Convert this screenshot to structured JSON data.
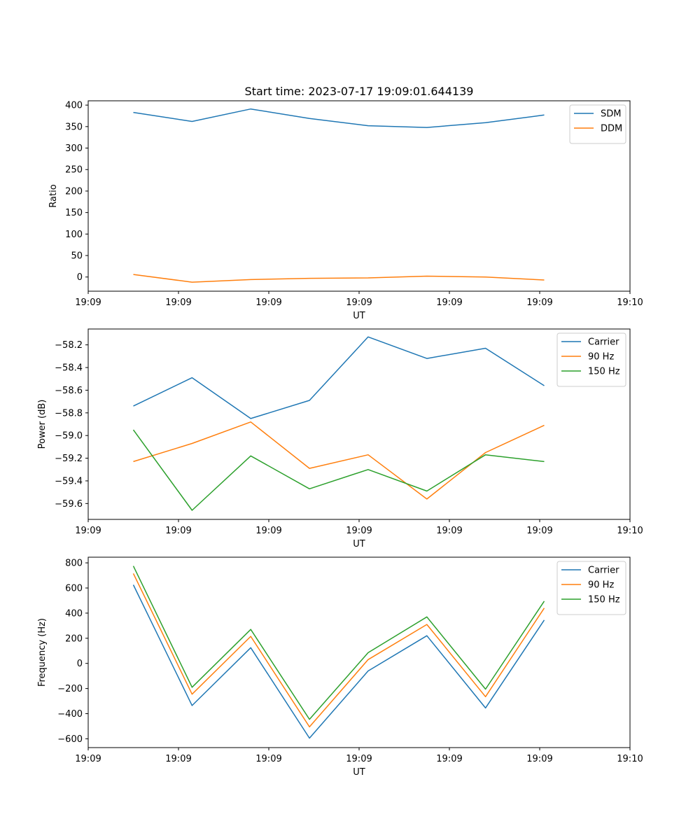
{
  "chart_data": [
    {
      "type": "line",
      "title": "Start time: 2023-07-17 19:09:01.644139",
      "xlabel": "UT",
      "ylabel": "Ratio",
      "x_tick_labels": [
        "19:09",
        "19:09",
        "19:09",
        "19:09",
        "19:09",
        "19:09",
        "19:10"
      ],
      "x_range": [
        0,
        6
      ],
      "x": [
        0.5,
        1.15,
        1.8,
        2.45,
        3.1,
        3.75,
        4.4,
        5.05
      ],
      "y_ticks": [
        0,
        50,
        100,
        150,
        200,
        250,
        300,
        350,
        400
      ],
      "ylim": [
        -33,
        410
      ],
      "legend_position": "top-right",
      "series": [
        {
          "name": "SDM",
          "color": "#1f77b4",
          "values": [
            383,
            362,
            391,
            369,
            352,
            348,
            359,
            377
          ]
        },
        {
          "name": "DDM",
          "color": "#ff7f0e",
          "values": [
            6,
            -12,
            -6,
            -3,
            -2,
            2,
            0,
            -7
          ]
        }
      ]
    },
    {
      "type": "line",
      "title": "",
      "xlabel": "UT",
      "ylabel": "Power (dB)",
      "x_tick_labels": [
        "19:09",
        "19:09",
        "19:09",
        "19:09",
        "19:09",
        "19:09",
        "19:10"
      ],
      "x_range": [
        0,
        6
      ],
      "x": [
        0.5,
        1.15,
        1.8,
        2.45,
        3.1,
        3.75,
        4.4,
        5.05
      ],
      "y_ticks": [
        -59.6,
        -59.4,
        -59.2,
        -59.0,
        -58.8,
        -58.6,
        -58.4,
        -58.2
      ],
      "y_tick_labels": [
        "−59.6",
        "−59.4",
        "−59.2",
        "−59.0",
        "−58.8",
        "−58.6",
        "−58.4",
        "−58.2"
      ],
      "ylim": [
        -59.74,
        -58.06
      ],
      "legend_position": "top-right",
      "series": [
        {
          "name": "Carrier",
          "color": "#1f77b4",
          "values": [
            -58.74,
            -58.49,
            -58.85,
            -58.69,
            -58.13,
            -58.32,
            -58.23,
            -58.56
          ]
        },
        {
          "name": "90 Hz",
          "color": "#ff7f0e",
          "values": [
            -59.23,
            -59.07,
            -58.88,
            -59.29,
            -59.17,
            -59.56,
            -59.15,
            -58.91
          ]
        },
        {
          "name": "150 Hz",
          "color": "#2ca02c",
          "values": [
            -58.95,
            -59.66,
            -59.18,
            -59.47,
            -59.3,
            -59.49,
            -59.17,
            -59.23
          ]
        }
      ]
    },
    {
      "type": "line",
      "title": "",
      "xlabel": "UT",
      "ylabel": "Frequency (Hz)",
      "x_tick_labels": [
        "19:09",
        "19:09",
        "19:09",
        "19:09",
        "19:09",
        "19:09",
        "19:10"
      ],
      "x_range": [
        0,
        6
      ],
      "x": [
        0.5,
        1.15,
        1.8,
        2.45,
        3.1,
        3.75,
        4.4,
        5.05
      ],
      "y_ticks": [
        -600,
        -400,
        -200,
        0,
        200,
        400,
        600,
        800
      ],
      "y_tick_labels": [
        "−600",
        "−400",
        "−200",
        "0",
        "200",
        "400",
        "600",
        "800"
      ],
      "ylim": [
        -670,
        845
      ],
      "legend_position": "top-right",
      "series": [
        {
          "name": "Carrier",
          "color": "#1f77b4",
          "values": [
            625,
            -335,
            125,
            -595,
            -60,
            220,
            -355,
            345
          ]
        },
        {
          "name": "90 Hz",
          "color": "#ff7f0e",
          "values": [
            715,
            -245,
            215,
            -505,
            30,
            310,
            -265,
            440
          ]
        },
        {
          "name": "150 Hz",
          "color": "#2ca02c",
          "values": [
            775,
            -190,
            270,
            -445,
            85,
            370,
            -205,
            495
          ]
        }
      ]
    }
  ]
}
